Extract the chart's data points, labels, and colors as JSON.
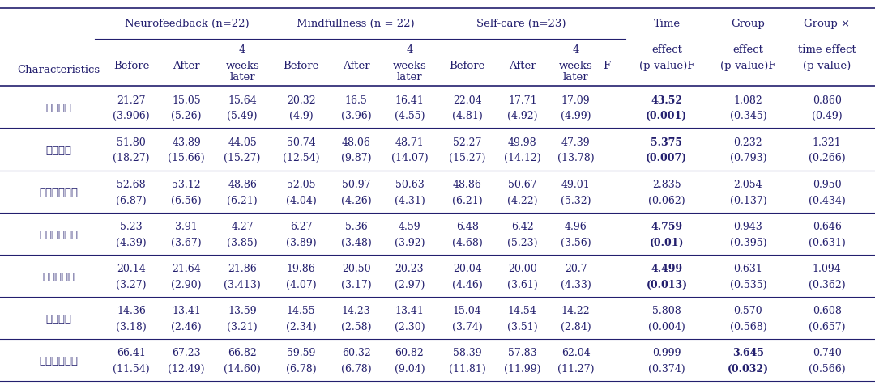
{
  "group_headers": [
    "Neurofeedback (n=22)",
    "Mindfullness (n = 22)",
    "Self-care (n=23)"
  ],
  "stat_col_headers": [
    [
      "Time",
      "effect",
      "(p-value)F"
    ],
    [
      "Group",
      "effect",
      "(p-value)F"
    ],
    [
      "Group ×",
      "time effect",
      "(p-value)"
    ]
  ],
  "characteristics_label": "Characteristics",
  "rows": [
    {
      "label": "스트레스",
      "values": [
        "21.27",
        "15.05",
        "15.64",
        "20.32",
        "16.5",
        "16.41",
        "22.04",
        "17.71",
        "17.09"
      ],
      "sd": [
        "(3.906)",
        "(5.26)",
        "(5.49)",
        "(4.9)",
        "(3.96)",
        "(4.55)",
        "(4.81)",
        "(4.92)",
        "(4.99)"
      ],
      "stat": [
        "43.52",
        "1.082",
        "0.860"
      ],
      "stat_p": [
        "(0.001)",
        "(0.345)",
        "(0.49)"
      ],
      "stat_bold": [
        true,
        false,
        false
      ],
      "stat_p_bold": [
        true,
        false,
        false
      ]
    },
    {
      "label": "감정노동",
      "values": [
        "51.80",
        "43.89",
        "44.05",
        "50.74",
        "48.06",
        "48.71",
        "52.27",
        "49.98",
        "47.39"
      ],
      "sd": [
        "(18.27)",
        "(15.66)",
        "(15.27)",
        "(12.54)",
        "(9.87)",
        "(14.07)",
        "(15.27)",
        "(14.12)",
        "(13.78)"
      ],
      "stat": [
        "5.375",
        "0.232",
        "1.321"
      ],
      "stat_p": [
        "(0.007)",
        "(0.793)",
        "(0.266)"
      ],
      "stat_bold": [
        true,
        false,
        false
      ],
      "stat_p_bold": [
        true,
        false,
        false
      ]
    },
    {
      "label": "직무스트레스",
      "values": [
        "52.68",
        "53.12",
        "48.86",
        "52.05",
        "50.97",
        "50.63",
        "48.86",
        "50.67",
        "49.01"
      ],
      "sd": [
        "(6.87)",
        "(6.56)",
        "(6.21)",
        "(4.04)",
        "(4.26)",
        "(4.31)",
        "(6.21)",
        "(4.22)",
        "(5.32)"
      ],
      "stat": [
        "2.835",
        "2.054",
        "0.950"
      ],
      "stat_p": [
        "(0.062)",
        "(0.137)",
        "(0.434)"
      ],
      "stat_bold": [
        false,
        false,
        false
      ],
      "stat_p_bold": [
        false,
        false,
        false
      ]
    },
    {
      "label": "우울증상점수",
      "values": [
        "5.23",
        "3.91",
        "4.27",
        "6.27",
        "5.36",
        "4.59",
        "6.48",
        "6.42",
        "4.96"
      ],
      "sd": [
        "(4.39)",
        "(3.67)",
        "(3.85)",
        "(3.89)",
        "(3.48)",
        "(3.92)",
        "(4.68)",
        "(5.23)",
        "(3.56)"
      ],
      "stat": [
        "4.759",
        "0.943",
        "0.646"
      ],
      "stat_p": [
        "(0.01)",
        "(0.395)",
        "(0.631)"
      ],
      "stat_bold": [
        true,
        false,
        false
      ],
      "stat_p_bold": [
        true,
        false,
        false
      ]
    },
    {
      "label": "회복탄력성",
      "values": [
        "20.14",
        "21.64",
        "21.86",
        "19.86",
        "20.50",
        "20.23",
        "20.04",
        "20.00",
        "20.7"
      ],
      "sd": [
        "(3.27)",
        "(2.90)",
        "(3.413)",
        "(4.07)",
        "(3.17)",
        "(2.97)",
        "(4.46)",
        "(3.61)",
        "(4.33)"
      ],
      "stat": [
        "4.499",
        "0.631",
        "1.094"
      ],
      "stat_p": [
        "(0.013)",
        "(0.535)",
        "(0.362)"
      ],
      "stat_bold": [
        true,
        false,
        false
      ],
      "stat_p_bold": [
        true,
        false,
        false
      ]
    },
    {
      "label": "수면체도",
      "values": [
        "14.36",
        "13.41",
        "13.59",
        "14.55",
        "14.23",
        "13.41",
        "15.04",
        "14.54",
        "14.22"
      ],
      "sd": [
        "(3.18)",
        "(2.46)",
        "(3.21)",
        "(2.34)",
        "(2.58)",
        "(2.30)",
        "(3.74)",
        "(3.51)",
        "(2.84)"
      ],
      "stat": [
        "5.808",
        "0.570",
        "0.608"
      ],
      "stat_p": [
        "(0.004)",
        "(0.568)",
        "(0.657)"
      ],
      "stat_bold": [
        false,
        false,
        false
      ],
      "stat_p_bold": [
        false,
        false,
        false
      ]
    },
    {
      "label": "마음챙김체도",
      "values": [
        "66.41",
        "67.23",
        "66.82",
        "59.59",
        "60.32",
        "60.82",
        "58.39",
        "57.83",
        "62.04"
      ],
      "sd": [
        "(11.54)",
        "(12.49)",
        "(14.60)",
        "(6.78)",
        "(6.78)",
        "(9.04)",
        "(11.81)",
        "(11.99)",
        "(11.27)"
      ],
      "stat": [
        "0.999",
        "3.645",
        "0.740"
      ],
      "stat_p": [
        "(0.374)",
        "(0.032)",
        "(0.566)"
      ],
      "stat_bold": [
        false,
        true,
        false
      ],
      "stat_p_bold": [
        false,
        true,
        false
      ]
    }
  ],
  "bg_color": "#ffffff",
  "text_color": "#231f6e",
  "line_color": "#231f6e",
  "font_size_header": 9.5,
  "font_size_data": 9.0,
  "font_size_label": 9.5
}
